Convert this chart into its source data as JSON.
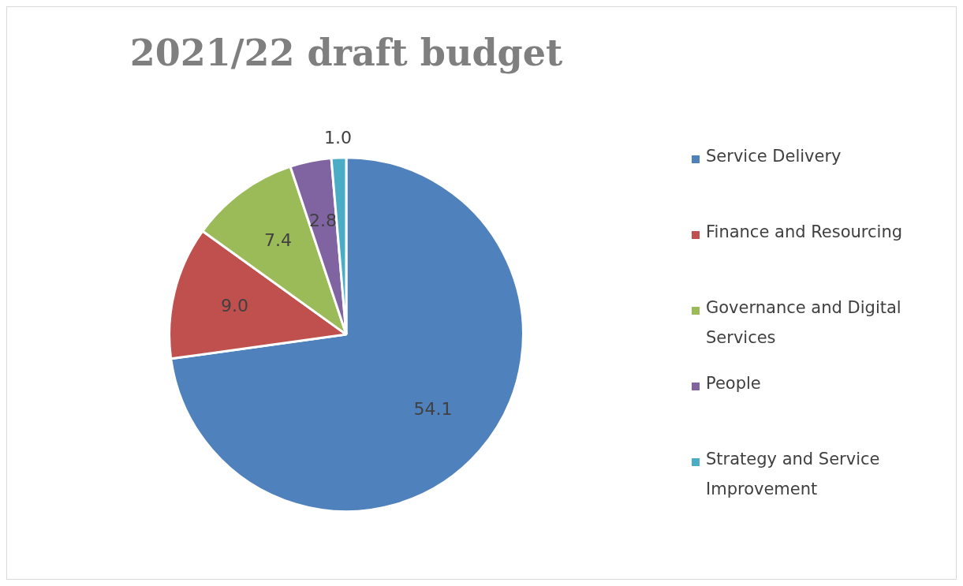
{
  "chart_data": {
    "type": "pie",
    "title": "2021/22 draft budget",
    "categories": [
      "Service Delivery",
      "Finance and Resourcing",
      "Governance and Digital Services",
      "People",
      "Strategy and Service Improvement"
    ],
    "values": [
      54.1,
      9.0,
      7.4,
      2.8,
      1.0
    ],
    "value_labels": [
      "54.1",
      "9.0",
      "7.4",
      "2.8",
      "1.0"
    ],
    "colors": [
      "#4f81bd",
      "#c0504d",
      "#9bbb59",
      "#8064a2",
      "#4bacc6"
    ],
    "legend": "right"
  }
}
